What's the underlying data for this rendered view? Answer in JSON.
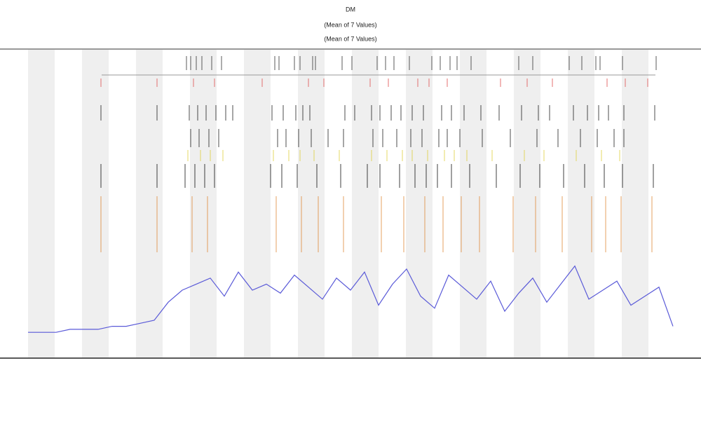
{
  "chart_data": {
    "type": "line",
    "title": "DM",
    "subtitles": [
      "(Mean of 7 Values)",
      "(Mean of 7 Values)"
    ],
    "xlim": [
      0,
      46
    ],
    "ylim": [
      0,
      100
    ],
    "x": [
      0,
      1,
      2,
      3,
      4,
      5,
      6,
      7,
      8,
      9,
      10,
      11,
      12,
      13,
      14,
      15,
      16,
      17,
      18,
      19,
      20,
      21,
      22,
      23,
      24,
      25,
      26,
      27,
      28,
      29,
      30,
      31,
      32,
      33,
      34,
      35,
      36,
      37,
      38,
      39,
      40,
      41,
      42,
      43,
      44,
      45,
      46
    ],
    "series": [
      {
        "color": "#5a5ad8",
        "values": [
          6,
          6,
          6,
          7,
          7,
          7,
          8,
          8,
          9,
          10,
          16,
          20,
          22,
          24,
          18,
          26,
          20,
          22,
          19,
          25,
          21,
          17,
          24,
          20,
          26,
          15,
          22,
          27,
          18,
          14,
          25,
          21,
          17,
          23,
          13,
          19,
          24,
          16,
          22,
          28,
          17,
          20,
          23,
          15,
          18,
          21,
          8
        ]
      }
    ],
    "events": [
      {
        "color": "#333333",
        "x": [
          11.3,
          11.6,
          12,
          12.4,
          13.1,
          13.8,
          17.6,
          17.9,
          19,
          19.4,
          20.3,
          20.5,
          22.4,
          23.1,
          24.9,
          25.5,
          26.1,
          27.2,
          28.8,
          29.4,
          30.1,
          30.6,
          31.6,
          35,
          36,
          38.6,
          39.5,
          40.5,
          40.8,
          42.4,
          44.8
        ]
      },
      {
        "color": "#e05050",
        "x": [
          5.2,
          9.2,
          11.8,
          13.3,
          16.7,
          20,
          21.1,
          24.4,
          25.7,
          27.8,
          28.6,
          29.9,
          33.7,
          35.6,
          37.4,
          41.3,
          42.6,
          44.2
        ]
      },
      {
        "color": "#222222",
        "x": [
          5.2,
          9.2,
          11.5,
          12.1,
          12.7,
          13.4,
          14.1,
          14.6,
          17.4,
          18.2,
          19.1,
          19.6,
          20.1,
          22.6,
          23.3,
          24.5,
          25.1,
          25.9,
          26.6,
          27.4,
          28.2,
          29.5,
          30.2,
          31.1,
          32.3,
          33.6,
          35.2,
          36.4,
          37.2,
          38.9,
          39.9,
          40.7,
          41.4,
          42.5,
          44.7
        ]
      },
      {
        "color": "#222222",
        "x": [
          11.6,
          12.2,
          12.9,
          13.6,
          17.8,
          18.4,
          19.3,
          20.2,
          21.4,
          22.5,
          24.6,
          25.3,
          26.3,
          27.3,
          28.1,
          29.3,
          29.9,
          30.8,
          32.4,
          34.4,
          36.3,
          37.8,
          39.4,
          40.6,
          41.8,
          42.5
        ]
      },
      {
        "color": "#e0d040",
        "x": [
          11.4,
          12.3,
          13,
          13.9,
          17.5,
          18.6,
          19.4,
          20.4,
          22.2,
          24.5,
          25.6,
          26.7,
          27.4,
          28.5,
          29.7,
          30.4,
          31.3,
          33.1,
          35.4,
          36.8,
          39.1,
          40.9,
          42.2
        ]
      },
      {
        "color": "#111111",
        "x": [
          5.2,
          9.2,
          11.2,
          11.9,
          12.6,
          13.3,
          17.3,
          18.1,
          19.2,
          20.6,
          22.3,
          24.2,
          25.1,
          26.5,
          27.6,
          28.4,
          29.2,
          30.2,
          31.5,
          33.4,
          35.1,
          36.5,
          38.2,
          39.7,
          41.1,
          42.4,
          44.6
        ]
      },
      {
        "color": "#e08a3a",
        "x": [
          5.2,
          9.2,
          11.7,
          12.8,
          17.7,
          19.5,
          20.7,
          22.5,
          25.2,
          26.8,
          28.3,
          29.6,
          30.9,
          32.2,
          34.6,
          36.2,
          38.1,
          40.2,
          41.2,
          42.3,
          44.5
        ]
      }
    ]
  }
}
